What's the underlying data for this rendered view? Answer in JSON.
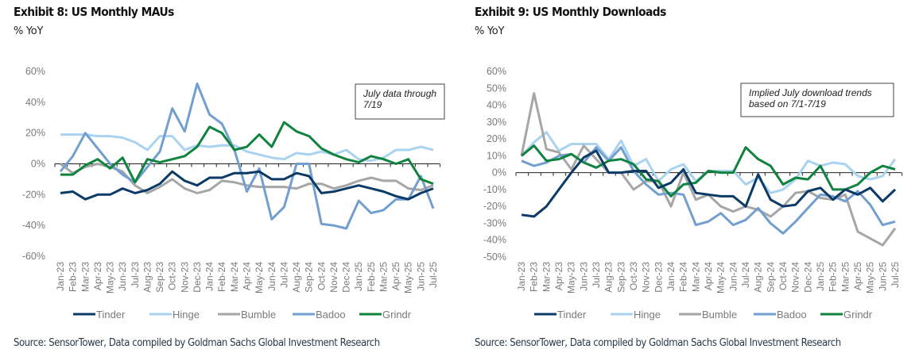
{
  "chart_data": [
    {
      "type": "line",
      "title": "Exhibit 8: US Monthly MAUs",
      "subtitle": "% YoY",
      "xlabel": "",
      "ylabel": "% YoY",
      "ylim": [
        -60,
        60
      ],
      "yticks": [
        60,
        40,
        20,
        0,
        -20,
        -40,
        -60
      ],
      "ytick_labels": [
        "60%",
        "40%",
        "20%",
        "0%",
        "-20%",
        "-40%",
        "-60%"
      ],
      "grid": false,
      "legend_position": "bottom",
      "annotation": [
        "July data through",
        "7/19"
      ],
      "source": "Source: SensorTower, Data compiled by Goldman Sachs Global Investment Research",
      "categories": [
        "Jan-23",
        "Feb-23",
        "Mar-23",
        "Apr-23",
        "May-23",
        "Jun-23",
        "Jul-23",
        "Aug-23",
        "Sep-23",
        "Oct-23",
        "Nov-23",
        "Dec-23",
        "Jan-24",
        "Feb-24",
        "Mar-24",
        "Apr-24",
        "May-24",
        "Jun-24",
        "Jul-24",
        "Aug-24",
        "Sep-24",
        "Oct-24",
        "Nov-24",
        "Dec-24",
        "Jan-25",
        "Feb-25",
        "Mar-25",
        "Apr-25",
        "May-25",
        "Jun-25",
        "Jul-25"
      ],
      "series": [
        {
          "name": "Tinder",
          "color": "#0b3a66",
          "values": [
            -19,
            -18,
            -23,
            -20,
            -20,
            -16,
            -19,
            -17,
            -13,
            -5,
            -11,
            -14,
            -9,
            -9,
            -6,
            -6,
            -5,
            -10,
            -10,
            -6,
            -8,
            -19,
            -18,
            -16,
            -14,
            -16,
            -18,
            -21,
            -23,
            -19,
            -16
          ]
        },
        {
          "name": "Hinge",
          "color": "#a9d3f0",
          "values": [
            19,
            19,
            19,
            18,
            18,
            17,
            14,
            9,
            18,
            18,
            9,
            12,
            11,
            12,
            12,
            8,
            6,
            4,
            3,
            7,
            6,
            8,
            6,
            9,
            3,
            2,
            4,
            9,
            9,
            11,
            9
          ]
        },
        {
          "name": "Bumble",
          "color": "#a6a6a6",
          "values": [
            0,
            -6,
            -2,
            0,
            -2,
            -5,
            -14,
            -19,
            -15,
            -10,
            -16,
            -19,
            -17,
            -11,
            -12,
            -14,
            -15,
            -15,
            -15,
            -16,
            -13,
            -13,
            -16,
            -14,
            -11,
            -9,
            -11,
            -11,
            -16,
            -17,
            -14
          ]
        },
        {
          "name": "Badoo",
          "color": "#729fcf",
          "values": [
            -5,
            5,
            20,
            10,
            0,
            -7,
            -12,
            -2,
            8,
            36,
            21,
            52,
            32,
            26,
            9,
            -18,
            -3,
            -36,
            -28,
            0,
            0,
            -39,
            -40,
            -42,
            -24,
            -32,
            -30,
            -23,
            -23,
            -8,
            -29
          ]
        },
        {
          "name": "Grindr",
          "color": "#10833e",
          "values": [
            -7,
            -7,
            -1,
            3,
            -3,
            4,
            -12,
            3,
            1,
            3,
            5,
            11,
            24,
            20,
            9,
            11,
            19,
            11,
            27,
            21,
            18,
            10,
            6,
            3,
            1,
            5,
            3,
            0,
            3,
            -10,
            -13
          ]
        }
      ]
    },
    {
      "type": "line",
      "title": "Exhibit 9: US Monthly Downloads",
      "subtitle": "% YoY",
      "xlabel": "",
      "ylabel": "% YoY",
      "ylim": [
        -50,
        60
      ],
      "yticks": [
        60,
        50,
        40,
        30,
        20,
        10,
        0,
        -10,
        -20,
        -30,
        -40,
        -50
      ],
      "ytick_labels": [
        "60%",
        "50%",
        "40%",
        "30%",
        "20%",
        "10%",
        "0%",
        "-10%",
        "-20%",
        "-30%",
        "-40%",
        "-50%"
      ],
      "grid": false,
      "legend_position": "bottom",
      "annotation": [
        "Implied July download trends",
        "based on 7/1-7/19"
      ],
      "source": "Source: SensorTower, Data compiled by Goldman Sachs Global Investment Research",
      "categories": [
        "Jan-23",
        "Feb-23",
        "Mar-23",
        "Apr-23",
        "May-23",
        "Jun-23",
        "Jul-23",
        "Aug-23",
        "Sep-23",
        "Oct-23",
        "Nov-23",
        "Dec-23",
        "Jan-24",
        "Feb-24",
        "Mar-24",
        "Apr-24",
        "May-24",
        "Jun-24",
        "Jul-24",
        "Aug-24",
        "Sep-24",
        "Oct-24",
        "Nov-24",
        "Dec-24",
        "Jan-25",
        "Feb-25",
        "Mar-25",
        "Apr-25",
        "May-25",
        "Jun-25",
        "Jul-25"
      ],
      "series": [
        {
          "name": "Tinder",
          "color": "#0b3a66",
          "values": [
            -25,
            -26,
            -20,
            -10,
            0,
            9,
            13,
            0,
            0,
            1,
            1,
            -9,
            -6,
            2,
            -12,
            -13,
            -14,
            -14,
            -20,
            -1,
            -16,
            -20,
            -19,
            -11,
            -9,
            -16,
            -10,
            -13,
            -9,
            -17,
            -10
          ]
        },
        {
          "name": "Hinge",
          "color": "#a9d3f0",
          "values": [
            10,
            18,
            24,
            13,
            17,
            17,
            17,
            8,
            19,
            4,
            8,
            -5,
            2,
            5,
            -5,
            1,
            1,
            1,
            -7,
            -3,
            -12,
            -10,
            -4,
            7,
            4,
            6,
            5,
            -2,
            -4,
            -2,
            8
          ]
        },
        {
          "name": "Bumble",
          "color": "#a6a6a6",
          "values": [
            10,
            47,
            14,
            12,
            2,
            16,
            8,
            0,
            0,
            -10,
            -5,
            -5,
            -20,
            0,
            -16,
            -13,
            -20,
            -23,
            -20,
            -22,
            -26,
            -20,
            -12,
            -11,
            -15,
            -16,
            -13,
            -35,
            -39,
            -43,
            -33
          ]
        },
        {
          "name": "Badoo",
          "color": "#729fcf",
          "values": [
            7,
            4,
            6,
            10,
            11,
            6,
            15,
            7,
            15,
            1,
            -7,
            -13,
            -12,
            -13,
            -31,
            -29,
            -24,
            -31,
            -28,
            -21,
            -30,
            -36,
            -29,
            -21,
            -13,
            -14,
            -17,
            -11,
            -19,
            -31,
            -29
          ]
        },
        {
          "name": "Grindr",
          "color": "#10833e",
          "values": [
            10,
            16,
            7,
            8,
            11,
            6,
            3,
            7,
            8,
            5,
            -4,
            -5,
            -14,
            -7,
            -6,
            1,
            0,
            0,
            15,
            8,
            4,
            -7,
            -3,
            -4,
            4,
            -10,
            -10,
            -7,
            0,
            4,
            2
          ]
        }
      ]
    }
  ]
}
